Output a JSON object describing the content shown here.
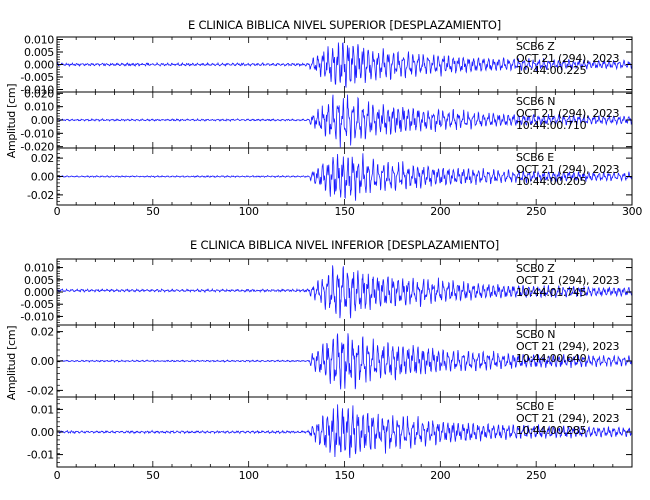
{
  "chart_data": [
    {
      "type": "line",
      "title": "E CLINICA BIBLICA NIVEL SUPERIOR [DESPLAZAMIENTO]",
      "ylabel": "Amplitud  [cm]",
      "xlim": [
        0,
        300
      ],
      "x_ticks": [
        "0",
        "50",
        "100",
        "150",
        "200",
        "250",
        "300"
      ],
      "panels": [
        {
          "ylim": [
            -0.011,
            0.011
          ],
          "y_ticks": [
            {
              "v": 0.01,
              "label": "0.010"
            },
            {
              "v": 0.005,
              "label": "0.005"
            },
            {
              "v": 0.0,
              "label": "0.000"
            },
            {
              "v": -0.005,
              "label": "-0.005"
            },
            {
              "v": -0.01,
              "label": "-0.010"
            }
          ],
          "station": "SCB6   Z",
          "date": "OCT 21 (294), 2023",
          "time": "10:44:00.225",
          "peak": 0.011,
          "noise": 0.0006,
          "offset": 0.0
        },
        {
          "ylim": [
            -0.021,
            0.021
          ],
          "y_ticks": [
            {
              "v": 0.02,
              "label": "0.020"
            },
            {
              "v": 0.01,
              "label": "0.010"
            },
            {
              "v": 0.0,
              "label": "0.00"
            },
            {
              "v": -0.01,
              "label": "-0.010"
            },
            {
              "v": -0.02,
              "label": "-0.020"
            }
          ],
          "station": "SCB6   N",
          "date": "OCT 21 (294), 2023",
          "time": "10:44:00.710",
          "peak": 0.021,
          "noise": 0.0008,
          "offset": 0.0
        },
        {
          "ylim": [
            -0.031,
            0.031
          ],
          "y_ticks": [
            {
              "v": 0.02,
              "label": "0.02"
            },
            {
              "v": 0.0,
              "label": "0.00"
            },
            {
              "v": -0.02,
              "label": "-0.02"
            }
          ],
          "station": "SCB6   E",
          "date": "OCT 21 (294), 2023",
          "time": "10:44:00.205",
          "peak": 0.03,
          "noise": 0.0009,
          "offset": 0.0
        }
      ]
    },
    {
      "type": "line",
      "title": "E CLINICA BIBLICA NIVEL INFERIOR [DESPLAZAMIENTO]",
      "ylabel": "Amplitud  [cm]",
      "xlim": [
        0,
        300
      ],
      "x_ticks": [
        "0",
        "50",
        "100",
        "150",
        "200",
        "250"
      ],
      "panels": [
        {
          "ylim": [
            -0.0135,
            0.0135
          ],
          "y_ticks": [
            {
              "v": 0.01,
              "label": "0.010"
            },
            {
              "v": 0.005,
              "label": "0.005"
            },
            {
              "v": 0.0,
              "label": "0.000"
            },
            {
              "v": -0.005,
              "label": "-0.005"
            },
            {
              "v": -0.01,
              "label": "-0.010"
            }
          ],
          "station": "SCB0   Z",
          "date": "OCT 21 (294), 2023",
          "time": "10:44:01.745",
          "peak": 0.0125,
          "noise": 0.0006,
          "offset": 0.0006
        },
        {
          "ylim": [
            -0.0245,
            0.0245
          ],
          "y_ticks": [
            {
              "v": 0.02,
              "label": "0.02"
            },
            {
              "v": 0.0,
              "label": "0.00"
            },
            {
              "v": -0.02,
              "label": "-0.02"
            }
          ],
          "station": "SCB0   N",
          "date": "OCT 21 (294), 2023",
          "time": "10:44:00.640",
          "peak": 0.023,
          "noise": 0.0006,
          "offset": 0.0
        },
        {
          "ylim": [
            -0.0155,
            0.0155
          ],
          "y_ticks": [
            {
              "v": 0.01,
              "label": "0.01"
            },
            {
              "v": 0.0,
              "label": "0.00"
            },
            {
              "v": -0.01,
              "label": "-0.01"
            }
          ],
          "station": "SCB0   E",
          "date": "OCT 21 (294), 2023",
          "time": "10:44:00.285",
          "peak": 0.0145,
          "noise": 0.0006,
          "offset": 0.0
        }
      ]
    }
  ],
  "style": {
    "trace_color": "#1a1aff",
    "axis_color": "#000000"
  }
}
